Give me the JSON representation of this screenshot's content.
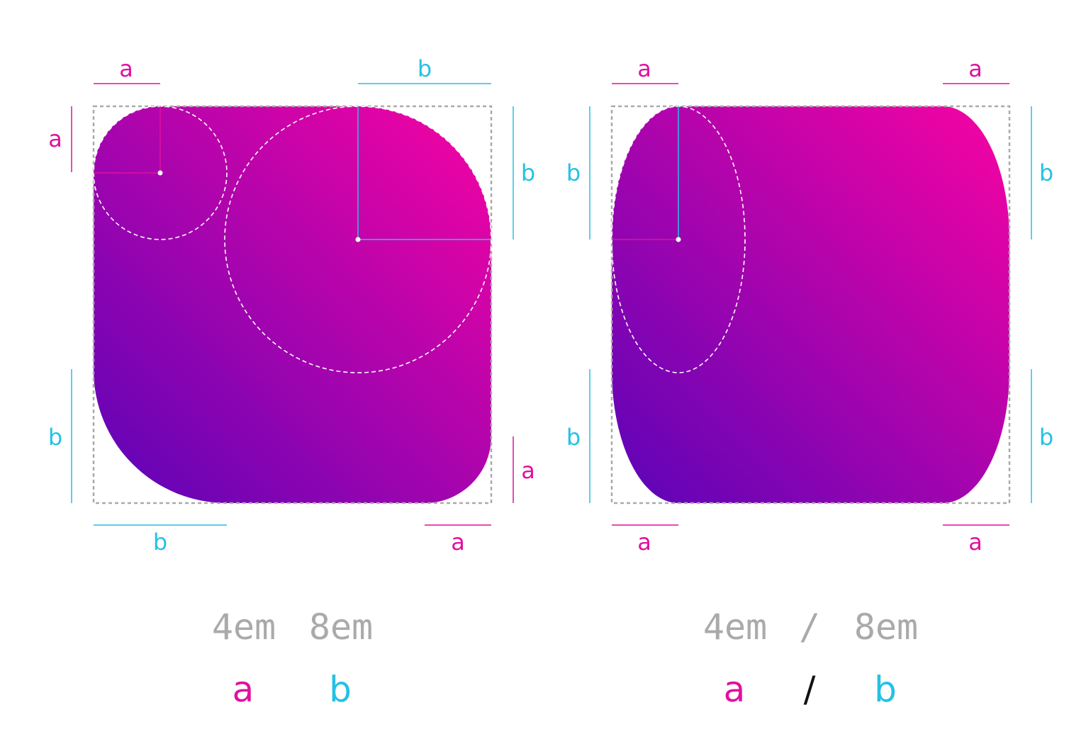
{
  "colors": {
    "a": "#e0119e",
    "b": "#25c1e4",
    "gradient_start": "#5a04b8",
    "gradient_end": "#f803a2",
    "code": "#aaaaaa",
    "slash": "#111111"
  },
  "labels": {
    "a": "a",
    "b": "b",
    "slash": "/"
  },
  "left": {
    "code_a": "4em",
    "code_b": "8em"
  },
  "right": {
    "code_a": "4em",
    "code_sep": "/",
    "code_b": "8em"
  }
}
